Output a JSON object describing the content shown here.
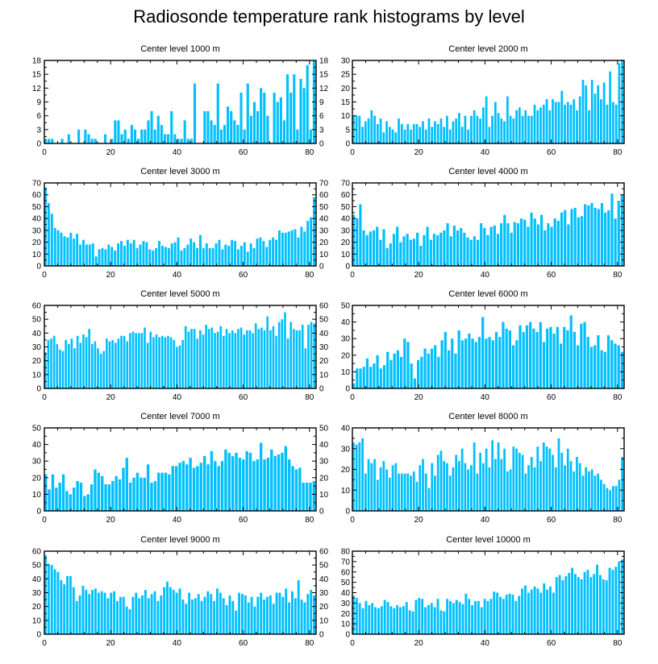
{
  "title": "Radiosonde temperature rank histograms by level",
  "bar_color": "#00bfff",
  "axis_color": "#000000",
  "chart_data": [
    {
      "type": "bar",
      "title": "Center level 1000 m",
      "xlim": [
        0,
        82
      ],
      "xticks": [
        0,
        20,
        40,
        60,
        80
      ],
      "ylim": [
        0,
        18
      ],
      "yticks": [
        0,
        3,
        6,
        9,
        12,
        15,
        18
      ],
      "values": [
        1,
        1,
        1,
        0,
        0,
        1,
        0,
        2,
        0,
        0,
        3,
        0,
        3,
        2,
        1,
        1,
        0,
        0,
        2,
        0,
        1,
        5,
        5,
        2,
        3,
        1,
        4,
        3,
        1,
        3,
        3,
        5,
        7,
        3,
        6,
        4,
        2,
        2,
        7,
        2,
        1,
        1,
        5,
        1,
        1,
        13,
        0,
        0,
        7,
        7,
        5,
        4,
        13,
        3,
        4,
        8,
        7,
        5,
        4,
        11,
        3,
        13,
        6,
        9,
        7,
        12,
        11,
        6,
        0,
        11,
        9,
        10,
        5,
        15,
        11,
        15,
        3,
        14,
        12,
        17,
        3,
        18
      ]
    },
    {
      "type": "bar",
      "title": "Center level 2000 m",
      "xlim": [
        0,
        82
      ],
      "xticks": [
        0,
        20,
        40,
        60,
        80
      ],
      "ylim": [
        0,
        30
      ],
      "yticks": [
        0,
        5,
        10,
        15,
        20,
        25,
        30
      ],
      "values": [
        10,
        10,
        10,
        6,
        8,
        9,
        12,
        10,
        7,
        9,
        4,
        8,
        6,
        5,
        4,
        9,
        7,
        5,
        7,
        5,
        7,
        7,
        6,
        8,
        5,
        9,
        6,
        8,
        7,
        9,
        6,
        10,
        5,
        8,
        9,
        11,
        6,
        10,
        5,
        10,
        12,
        10,
        9,
        13,
        17,
        6,
        10,
        15,
        11,
        9,
        8,
        17,
        10,
        9,
        12,
        13,
        10,
        12,
        10,
        10,
        14,
        12,
        13,
        14,
        16,
        12,
        16,
        15,
        15,
        19,
        14,
        15,
        14,
        16,
        12,
        17,
        23,
        21,
        12,
        23,
        18,
        21,
        16,
        22,
        14,
        26,
        15,
        14,
        29,
        30
      ]
    },
    {
      "type": "bar",
      "title": "Center level 3000 m",
      "xlim": [
        0,
        82
      ],
      "xticks": [
        0,
        20,
        40,
        60,
        80
      ],
      "ylim": [
        0,
        70
      ],
      "yticks": [
        0,
        10,
        20,
        30,
        40,
        50,
        60,
        70
      ],
      "values": [
        66,
        53,
        44,
        32,
        30,
        28,
        25,
        24,
        28,
        23,
        27,
        18,
        22,
        18,
        18,
        19,
        8,
        14,
        15,
        14,
        18,
        16,
        13,
        19,
        21,
        17,
        22,
        19,
        22,
        15,
        18,
        21,
        20,
        14,
        13,
        15,
        21,
        17,
        16,
        15,
        19,
        20,
        24,
        13,
        15,
        18,
        23,
        20,
        15,
        26,
        15,
        19,
        15,
        15,
        19,
        22,
        14,
        18,
        17,
        22,
        21,
        14,
        17,
        20,
        12,
        19,
        15,
        23,
        24,
        21,
        16,
        22,
        24,
        22,
        30,
        28,
        28,
        29,
        30,
        31,
        24,
        33,
        29,
        38,
        41,
        58
      ]
    },
    {
      "type": "bar",
      "title": "Center level 4000 m",
      "xlim": [
        0,
        82
      ],
      "xticks": [
        0,
        20,
        40,
        60,
        80
      ],
      "ylim": [
        0,
        70
      ],
      "yticks": [
        0,
        10,
        20,
        30,
        40,
        50,
        60,
        70
      ],
      "values": [
        43,
        40,
        52,
        30,
        26,
        29,
        30,
        33,
        22,
        31,
        15,
        19,
        27,
        33,
        20,
        25,
        27,
        22,
        23,
        28,
        17,
        26,
        33,
        22,
        27,
        26,
        28,
        30,
        36,
        25,
        34,
        30,
        32,
        28,
        24,
        22,
        25,
        22,
        36,
        32,
        26,
        33,
        34,
        27,
        36,
        43,
        36,
        28,
        37,
        36,
        40,
        39,
        33,
        45,
        40,
        35,
        43,
        30,
        36,
        33,
        40,
        38,
        45,
        47,
        35,
        48,
        49,
        41,
        42,
        52,
        51,
        53,
        49,
        48,
        53,
        45,
        47,
        61,
        40,
        55,
        60
      ]
    },
    {
      "type": "bar",
      "title": "Center level 5000 m",
      "xlim": [
        0,
        82
      ],
      "xticks": [
        0,
        20,
        40,
        60,
        80
      ],
      "ylim": [
        0,
        60
      ],
      "yticks": [
        0,
        10,
        20,
        30,
        40,
        50,
        60
      ],
      "values": [
        26,
        35,
        36,
        38,
        32,
        28,
        27,
        35,
        32,
        36,
        29,
        38,
        33,
        39,
        37,
        43,
        32,
        34,
        29,
        25,
        27,
        36,
        34,
        35,
        33,
        36,
        38,
        38,
        34,
        40,
        41,
        40,
        40,
        40,
        44,
        33,
        41,
        37,
        39,
        37,
        38,
        37,
        38,
        37,
        35,
        30,
        31,
        35,
        45,
        41,
        43,
        43,
        36,
        42,
        39,
        46,
        43,
        44,
        40,
        41,
        45,
        38,
        43,
        40,
        42,
        40,
        43,
        44,
        39,
        42,
        42,
        40,
        47,
        43,
        44,
        42,
        52,
        42,
        45,
        38,
        48,
        50,
        55,
        36,
        48,
        43,
        42,
        42,
        46,
        29,
        46,
        48,
        47
      ]
    },
    {
      "type": "bar",
      "title": "Center level 6000 m",
      "xlim": [
        0,
        82
      ],
      "xticks": [
        0,
        20,
        40,
        60,
        80
      ],
      "ylim": [
        0,
        50
      ],
      "yticks": [
        0,
        10,
        20,
        30,
        40,
        50
      ],
      "values": [
        3,
        12,
        12,
        13,
        18,
        13,
        15,
        20,
        12,
        14,
        22,
        17,
        21,
        23,
        19,
        30,
        28,
        15,
        6,
        17,
        19,
        24,
        21,
        24,
        26,
        19,
        29,
        34,
        23,
        30,
        21,
        35,
        29,
        30,
        33,
        30,
        28,
        31,
        43,
        30,
        31,
        29,
        34,
        31,
        40,
        36,
        35,
        26,
        29,
        38,
        34,
        38,
        40,
        36,
        34,
        40,
        28,
        36,
        37,
        33,
        37,
        27,
        37,
        35,
        44,
        34,
        26,
        39,
        40,
        31,
        25,
        26,
        32,
        23,
        22,
        32,
        29,
        27,
        26,
        22
      ]
    },
    {
      "type": "bar",
      "title": "Center level 7000 m",
      "xlim": [
        0,
        82
      ],
      "xticks": [
        0,
        20,
        40,
        60,
        80
      ],
      "ylim": [
        0,
        50
      ],
      "yticks": [
        0,
        10,
        20,
        30,
        40,
        50
      ],
      "values": [
        22,
        13,
        22,
        14,
        17,
        22,
        12,
        10,
        14,
        18,
        17,
        9,
        10,
        16,
        25,
        23,
        21,
        16,
        16,
        18,
        21,
        19,
        26,
        32,
        17,
        20,
        23,
        20,
        20,
        28,
        17,
        18,
        23,
        23,
        23,
        22,
        27,
        27,
        29,
        30,
        28,
        32,
        26,
        27,
        29,
        33,
        28,
        36,
        30,
        27,
        30,
        37,
        35,
        33,
        35,
        32,
        31,
        36,
        35,
        30,
        31,
        41,
        31,
        32,
        37,
        33,
        34,
        35,
        39,
        31,
        27,
        25,
        26,
        17,
        17,
        17,
        18
      ]
    },
    {
      "type": "bar",
      "title": "Center level 8000 m",
      "xlim": [
        0,
        82
      ],
      "xticks": [
        0,
        20,
        40,
        60,
        80
      ],
      "ylim": [
        0,
        40
      ],
      "yticks": [
        0,
        10,
        20,
        30,
        40
      ],
      "values": [
        33,
        32,
        33,
        35,
        18,
        25,
        23,
        25,
        15,
        21,
        24,
        20,
        16,
        22,
        23,
        18,
        18,
        18,
        18,
        17,
        19,
        14,
        22,
        25,
        18,
        11,
        23,
        17,
        27,
        29,
        24,
        23,
        17,
        21,
        27,
        24,
        30,
        23,
        20,
        22,
        33,
        18,
        28,
        23,
        30,
        21,
        34,
        25,
        33,
        25,
        30,
        19,
        20,
        31,
        30,
        28,
        27,
        18,
        22,
        26,
        21,
        31,
        24,
        33,
        31,
        30,
        27,
        21,
        35,
        28,
        22,
        30,
        24,
        19,
        26,
        23,
        17,
        21,
        19,
        20,
        17,
        18,
        15,
        13,
        11,
        10,
        12,
        12,
        15,
        26
      ]
    },
    {
      "type": "bar",
      "title": "Center level 9000 m",
      "xlim": [
        0,
        82
      ],
      "xticks": [
        0,
        20,
        40,
        60,
        80
      ],
      "ylim": [
        0,
        60
      ],
      "yticks": [
        0,
        10,
        20,
        30,
        40,
        50,
        60
      ],
      "values": [
        57,
        51,
        50,
        47,
        45,
        39,
        36,
        42,
        42,
        34,
        24,
        28,
        35,
        32,
        29,
        32,
        33,
        30,
        31,
        30,
        26,
        30,
        31,
        24,
        27,
        27,
        20,
        18,
        27,
        30,
        26,
        28,
        32,
        26,
        29,
        31,
        24,
        28,
        34,
        38,
        34,
        32,
        30,
        33,
        25,
        22,
        30,
        25,
        26,
        29,
        24,
        27,
        31,
        29,
        24,
        33,
        30,
        26,
        21,
        28,
        24,
        17,
        30,
        29,
        28,
        23,
        27,
        20,
        27,
        30,
        25,
        27,
        28,
        22,
        30,
        30,
        27,
        33,
        23,
        31,
        26,
        39,
        25,
        23,
        29,
        32,
        28
      ]
    },
    {
      "type": "bar",
      "title": "Center level 10000 m",
      "xlim": [
        0,
        82
      ],
      "xticks": [
        0,
        20,
        40,
        60,
        80
      ],
      "ylim": [
        0,
        80
      ],
      "yticks": [
        0,
        10,
        20,
        30,
        40,
        50,
        60,
        70,
        80
      ],
      "values": [
        37,
        35,
        30,
        25,
        32,
        28,
        30,
        26,
        25,
        27,
        33,
        31,
        27,
        25,
        28,
        26,
        27,
        31,
        23,
        22,
        33,
        35,
        34,
        26,
        28,
        30,
        26,
        34,
        23,
        22,
        34,
        32,
        30,
        33,
        31,
        29,
        39,
        34,
        28,
        32,
        32,
        26,
        34,
        32,
        34,
        41,
        40,
        36,
        34,
        38,
        39,
        38,
        32,
        37,
        44,
        47,
        40,
        43,
        46,
        44,
        40,
        49,
        43,
        46,
        40,
        55,
        57,
        52,
        56,
        59,
        64,
        58,
        55,
        53,
        60,
        62,
        55,
        58,
        67,
        57,
        53,
        52,
        64,
        62,
        65,
        70,
        72
      ]
    }
  ]
}
